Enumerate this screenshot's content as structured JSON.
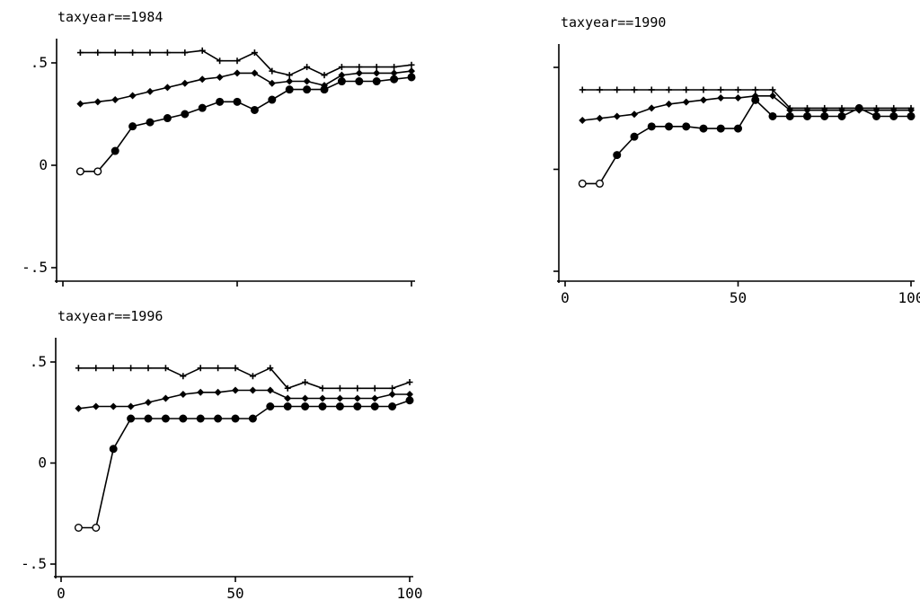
{
  "chart_data": [
    {
      "type": "line",
      "title": "taxyear==1984",
      "xlabel": "",
      "ylabel": "",
      "xlim": [
        0,
        100
      ],
      "ylim": [
        -0.5,
        0.5
      ],
      "x_ticks": [
        0,
        50,
        100
      ],
      "x_tick_labels": [],
      "y_ticks": [
        -0.5,
        0,
        0.5
      ],
      "y_tick_labels": [
        "-.5",
        "0",
        ".5"
      ],
      "grid": false,
      "series": [
        {
          "marker": "plus",
          "x": [
            5,
            10,
            15,
            20,
            25,
            30,
            35,
            40,
            45,
            50,
            55,
            60,
            65,
            70,
            75,
            80,
            85,
            90,
            95,
            100
          ],
          "y": [
            0.55,
            0.55,
            0.55,
            0.55,
            0.55,
            0.55,
            0.55,
            0.56,
            0.51,
            0.51,
            0.55,
            0.46,
            0.44,
            0.48,
            0.44,
            0.48,
            0.48,
            0.48,
            0.48,
            0.49
          ]
        },
        {
          "marker": "diamond",
          "x": [
            5,
            10,
            15,
            20,
            25,
            30,
            35,
            40,
            45,
            50,
            55,
            60,
            65,
            70,
            75,
            80,
            85,
            90,
            95,
            100
          ],
          "y": [
            0.3,
            0.31,
            0.32,
            0.34,
            0.36,
            0.38,
            0.4,
            0.42,
            0.43,
            0.45,
            0.45,
            0.4,
            0.41,
            0.41,
            0.39,
            0.44,
            0.45,
            0.45,
            0.45,
            0.46
          ]
        },
        {
          "marker": "circle",
          "x": [
            5,
            10,
            15,
            20,
            25,
            30,
            35,
            40,
            45,
            50,
            55,
            60,
            65,
            70,
            75,
            80,
            85,
            90,
            95,
            100
          ],
          "y": [
            -0.03,
            -0.03,
            0.07,
            0.19,
            0.21,
            0.23,
            0.25,
            0.28,
            0.31,
            0.31,
            0.27,
            0.32,
            0.37,
            0.37,
            0.37,
            0.41,
            0.41,
            0.41,
            0.42,
            0.43
          ]
        }
      ]
    },
    {
      "type": "line",
      "title": "taxyear==1990",
      "xlabel": "",
      "ylabel": "",
      "xlim": [
        0,
        100
      ],
      "ylim": [
        -0.5,
        0.5
      ],
      "x_ticks": [
        0,
        50,
        100
      ],
      "x_tick_labels": [
        "0",
        "50",
        "100"
      ],
      "y_ticks": [
        -0.5,
        0,
        0.5
      ],
      "y_tick_labels": [],
      "grid": false,
      "series": [
        {
          "marker": "plus",
          "x": [
            5,
            10,
            15,
            20,
            25,
            30,
            35,
            40,
            45,
            50,
            55,
            60,
            65,
            70,
            75,
            80,
            85,
            90,
            95,
            100
          ],
          "y": [
            0.39,
            0.39,
            0.39,
            0.39,
            0.39,
            0.39,
            0.39,
            0.39,
            0.39,
            0.39,
            0.39,
            0.39,
            0.3,
            0.3,
            0.3,
            0.3,
            0.3,
            0.3,
            0.3,
            0.3
          ]
        },
        {
          "marker": "diamond",
          "x": [
            5,
            10,
            15,
            20,
            25,
            30,
            35,
            40,
            45,
            50,
            55,
            60,
            65,
            70,
            75,
            80,
            85,
            90,
            95,
            100
          ],
          "y": [
            0.24,
            0.25,
            0.26,
            0.27,
            0.3,
            0.32,
            0.33,
            0.34,
            0.35,
            0.35,
            0.36,
            0.36,
            0.29,
            0.29,
            0.29,
            0.29,
            0.29,
            0.29,
            0.29,
            0.29
          ]
        },
        {
          "marker": "circle",
          "x": [
            5,
            10,
            15,
            20,
            25,
            30,
            35,
            40,
            45,
            50,
            55,
            60,
            65,
            70,
            75,
            80,
            85,
            90,
            95,
            100
          ],
          "y": [
            -0.07,
            -0.07,
            0.07,
            0.16,
            0.21,
            0.21,
            0.21,
            0.2,
            0.2,
            0.2,
            0.34,
            0.26,
            0.26,
            0.26,
            0.26,
            0.26,
            0.3,
            0.26,
            0.26,
            0.26
          ]
        }
      ]
    },
    {
      "type": "line",
      "title": "taxyear==1996",
      "xlabel": "",
      "ylabel": "",
      "xlim": [
        0,
        100
      ],
      "ylim": [
        -0.5,
        0.5
      ],
      "x_ticks": [
        0,
        50,
        100
      ],
      "x_tick_labels": [
        "0",
        "50",
        "100"
      ],
      "y_ticks": [
        -0.5,
        0,
        0.5
      ],
      "y_tick_labels": [
        "-.5",
        "0",
        ".5"
      ],
      "grid": false,
      "series": [
        {
          "marker": "plus",
          "x": [
            5,
            10,
            15,
            20,
            25,
            30,
            35,
            40,
            45,
            50,
            55,
            60,
            65,
            70,
            75,
            80,
            85,
            90,
            95,
            100
          ],
          "y": [
            0.47,
            0.47,
            0.47,
            0.47,
            0.47,
            0.47,
            0.43,
            0.47,
            0.47,
            0.47,
            0.43,
            0.47,
            0.37,
            0.4,
            0.37,
            0.37,
            0.37,
            0.37,
            0.37,
            0.4
          ]
        },
        {
          "marker": "diamond",
          "x": [
            5,
            10,
            15,
            20,
            25,
            30,
            35,
            40,
            45,
            50,
            55,
            60,
            65,
            70,
            75,
            80,
            85,
            90,
            95,
            100
          ],
          "y": [
            0.27,
            0.28,
            0.28,
            0.28,
            0.3,
            0.32,
            0.34,
            0.35,
            0.35,
            0.36,
            0.36,
            0.36,
            0.32,
            0.32,
            0.32,
            0.32,
            0.32,
            0.32,
            0.34,
            0.34
          ]
        },
        {
          "marker": "circle",
          "x": [
            5,
            10,
            15,
            20,
            25,
            30,
            35,
            40,
            45,
            50,
            55,
            60,
            65,
            70,
            75,
            80,
            85,
            90,
            95,
            100
          ],
          "y": [
            -0.32,
            -0.32,
            0.07,
            0.22,
            0.22,
            0.22,
            0.22,
            0.22,
            0.22,
            0.22,
            0.22,
            0.28,
            0.28,
            0.28,
            0.28,
            0.28,
            0.28,
            0.28,
            0.28,
            0.31
          ]
        }
      ]
    }
  ]
}
